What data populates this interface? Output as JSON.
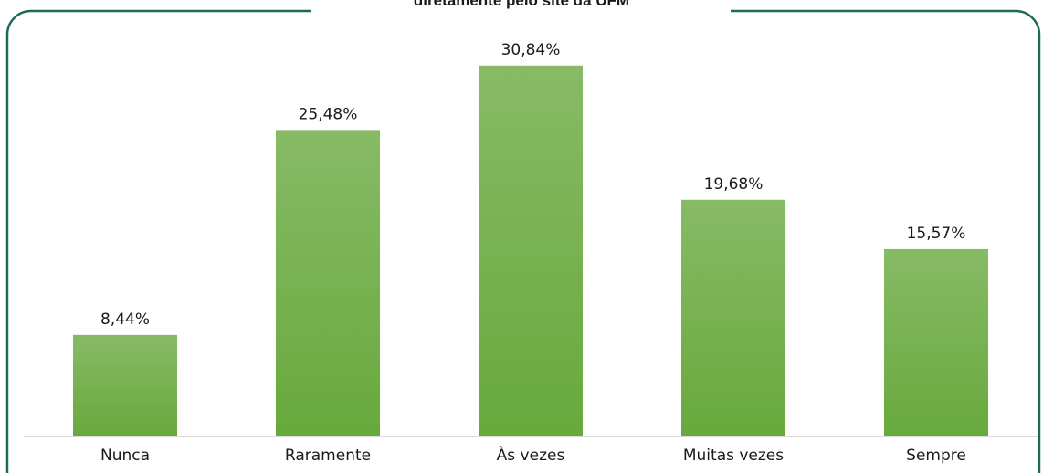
{
  "chart_data": {
    "type": "bar",
    "title": "diretamente pelo site da UFM",
    "categories": [
      "Nunca",
      "Raramente",
      "Às vezes",
      "Muitas vezes",
      "Sempre"
    ],
    "values": [
      8.44,
      25.48,
      30.84,
      19.68,
      15.57
    ],
    "value_labels": [
      "8,44%",
      "25,48%",
      "30,84%",
      "19,68%",
      "15,57%"
    ],
    "color": "#70ad47",
    "ylim": [
      0,
      35
    ],
    "grid": false
  }
}
